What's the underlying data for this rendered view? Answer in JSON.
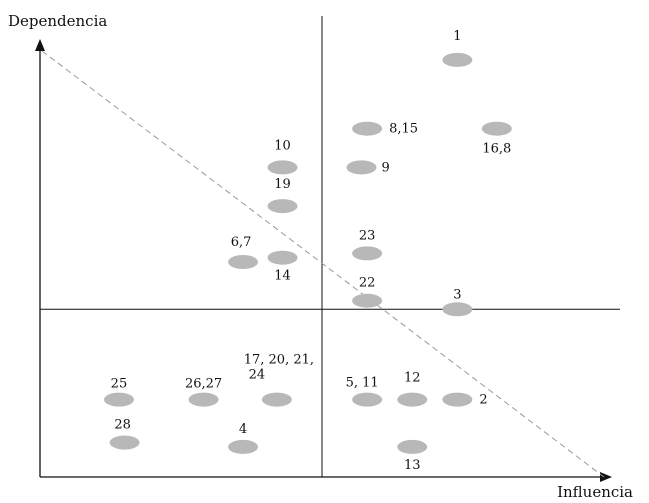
{
  "chart_data": {
    "type": "scatter",
    "title": "",
    "xlabel": "Influencia",
    "ylabel": "Dependencia",
    "xlim": [
      0,
      10
    ],
    "ylim": [
      0,
      10
    ],
    "grid": false,
    "quadrant_divider": {
      "x": 5.0,
      "y": 3.9
    },
    "diagonal": {
      "from": [
        0,
        10
      ],
      "to": [
        10,
        0
      ],
      "style": "dashed"
    },
    "points": [
      {
        "label": "1",
        "x": 7.4,
        "y": 9.7
      },
      {
        "label": "8,15",
        "x": 5.8,
        "y": 8.1
      },
      {
        "label": "16,8",
        "x": 8.1,
        "y": 8.1
      },
      {
        "label": "10",
        "x": 4.3,
        "y": 7.2
      },
      {
        "label": "9",
        "x": 5.7,
        "y": 7.2
      },
      {
        "label": "19",
        "x": 4.3,
        "y": 6.3
      },
      {
        "label": "23",
        "x": 5.8,
        "y": 5.2
      },
      {
        "label": "6,7",
        "x": 3.6,
        "y": 5.0
      },
      {
        "label": "14",
        "x": 4.3,
        "y": 5.1
      },
      {
        "label": "22",
        "x": 5.8,
        "y": 4.1
      },
      {
        "label": "3",
        "x": 7.4,
        "y": 3.9
      },
      {
        "label": "25",
        "x": 1.4,
        "y": 1.8
      },
      {
        "label": "26,27",
        "x": 2.9,
        "y": 1.8
      },
      {
        "label": "17, 20, 21,\n24",
        "x": 4.2,
        "y": 1.8
      },
      {
        "label": "5, 11",
        "x": 5.8,
        "y": 1.8
      },
      {
        "label": "12",
        "x": 6.6,
        "y": 1.8
      },
      {
        "label": "2",
        "x": 7.4,
        "y": 1.8
      },
      {
        "label": "28",
        "x": 1.5,
        "y": 0.8
      },
      {
        "label": "4",
        "x": 3.6,
        "y": 0.7
      },
      {
        "label": "13",
        "x": 6.6,
        "y": 0.7
      }
    ],
    "point_color": "#b8b8b8",
    "axis_color": "#111111",
    "diagonal_color": "#999999"
  }
}
